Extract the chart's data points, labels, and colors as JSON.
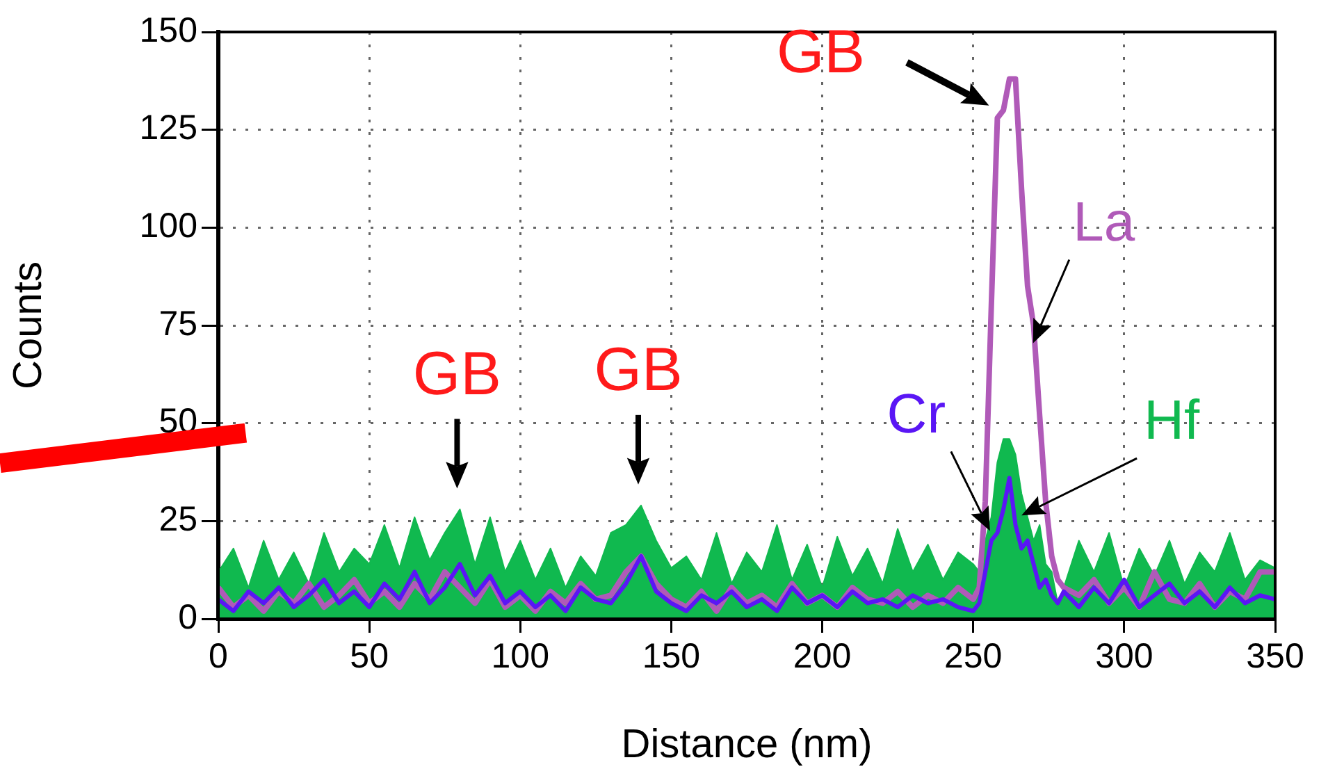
{
  "chart_data": {
    "type": "area",
    "xlabel": "Distance (nm)",
    "ylabel": "Counts",
    "x": [
      0,
      5,
      10,
      15,
      20,
      25,
      30,
      35,
      40,
      45,
      50,
      55,
      60,
      65,
      70,
      75,
      80,
      85,
      90,
      95,
      100,
      105,
      110,
      115,
      120,
      125,
      130,
      135,
      140,
      145,
      150,
      155,
      160,
      165,
      170,
      175,
      180,
      185,
      190,
      195,
      200,
      205,
      210,
      215,
      220,
      225,
      230,
      235,
      240,
      245,
      250,
      252,
      254,
      256,
      258,
      260,
      262,
      264,
      266,
      268,
      270,
      272,
      274,
      276,
      278,
      280,
      285,
      290,
      295,
      300,
      305,
      310,
      315,
      320,
      325,
      330,
      335,
      340,
      345,
      350
    ],
    "series": [
      {
        "name": "Hf",
        "color": "#10b94f",
        "values": [
          12,
          18,
          8,
          20,
          10,
          17,
          9,
          22,
          12,
          18,
          14,
          24,
          13,
          26,
          15,
          22,
          28,
          14,
          26,
          12,
          20,
          10,
          18,
          8,
          16,
          11,
          22,
          24,
          29,
          20,
          13,
          16,
          10,
          22,
          9,
          17,
          12,
          24,
          10,
          19,
          8,
          21,
          11,
          18,
          9,
          23,
          12,
          19,
          10,
          17,
          14,
          12,
          20,
          26,
          40,
          46,
          46,
          42,
          32,
          26,
          20,
          24,
          14,
          12,
          4,
          8,
          20,
          12,
          22,
          8,
          18,
          11,
          20,
          9,
          17,
          12,
          22,
          10,
          15,
          13
        ]
      },
      {
        "name": "La",
        "type": "line",
        "color": "#b05ab8",
        "values": [
          8,
          3,
          6,
          2,
          7,
          4,
          9,
          3,
          6,
          10,
          4,
          7,
          3,
          9,
          5,
          12,
          8,
          4,
          10,
          3,
          6,
          2,
          7,
          4,
          9,
          5,
          6,
          12,
          16,
          9,
          5,
          3,
          7,
          2,
          8,
          4,
          6,
          3,
          9,
          4,
          6,
          3,
          8,
          5,
          4,
          7,
          3,
          6,
          4,
          8,
          5,
          8,
          30,
          80,
          128,
          130,
          138,
          138,
          110,
          85,
          75,
          52,
          30,
          16,
          10,
          8,
          6,
          10,
          4,
          8,
          3,
          12,
          5,
          4,
          9,
          3,
          7,
          5,
          12,
          12
        ]
      },
      {
        "name": "Cr",
        "type": "line",
        "color": "#5a16f5",
        "values": [
          5,
          2,
          7,
          4,
          8,
          3,
          6,
          10,
          4,
          7,
          3,
          9,
          5,
          12,
          4,
          8,
          14,
          6,
          11,
          4,
          7,
          3,
          6,
          2,
          8,
          5,
          4,
          9,
          16,
          7,
          4,
          2,
          6,
          4,
          7,
          3,
          5,
          2,
          8,
          4,
          6,
          3,
          7,
          4,
          5,
          3,
          6,
          4,
          5,
          3,
          2,
          4,
          12,
          20,
          22,
          28,
          36,
          24,
          18,
          20,
          14,
          8,
          10,
          6,
          4,
          7,
          3,
          8,
          4,
          10,
          3,
          6,
          9,
          4,
          7,
          3,
          8,
          4,
          6,
          5
        ]
      }
    ],
    "xlim": [
      0,
      350
    ],
    "xticks": [
      0,
      50,
      100,
      150,
      200,
      250,
      300,
      350
    ],
    "ylim": [
      0,
      150
    ],
    "yticks": [
      0,
      25,
      50,
      75,
      100,
      125,
      150
    ],
    "grid": true,
    "legend": false,
    "annotations": [
      {
        "text": "GB",
        "x": 80,
        "y": 28
      },
      {
        "text": "GB",
        "x": 140,
        "y": 29
      },
      {
        "text": "GB",
        "x": 258,
        "y": 128
      }
    ]
  }
}
